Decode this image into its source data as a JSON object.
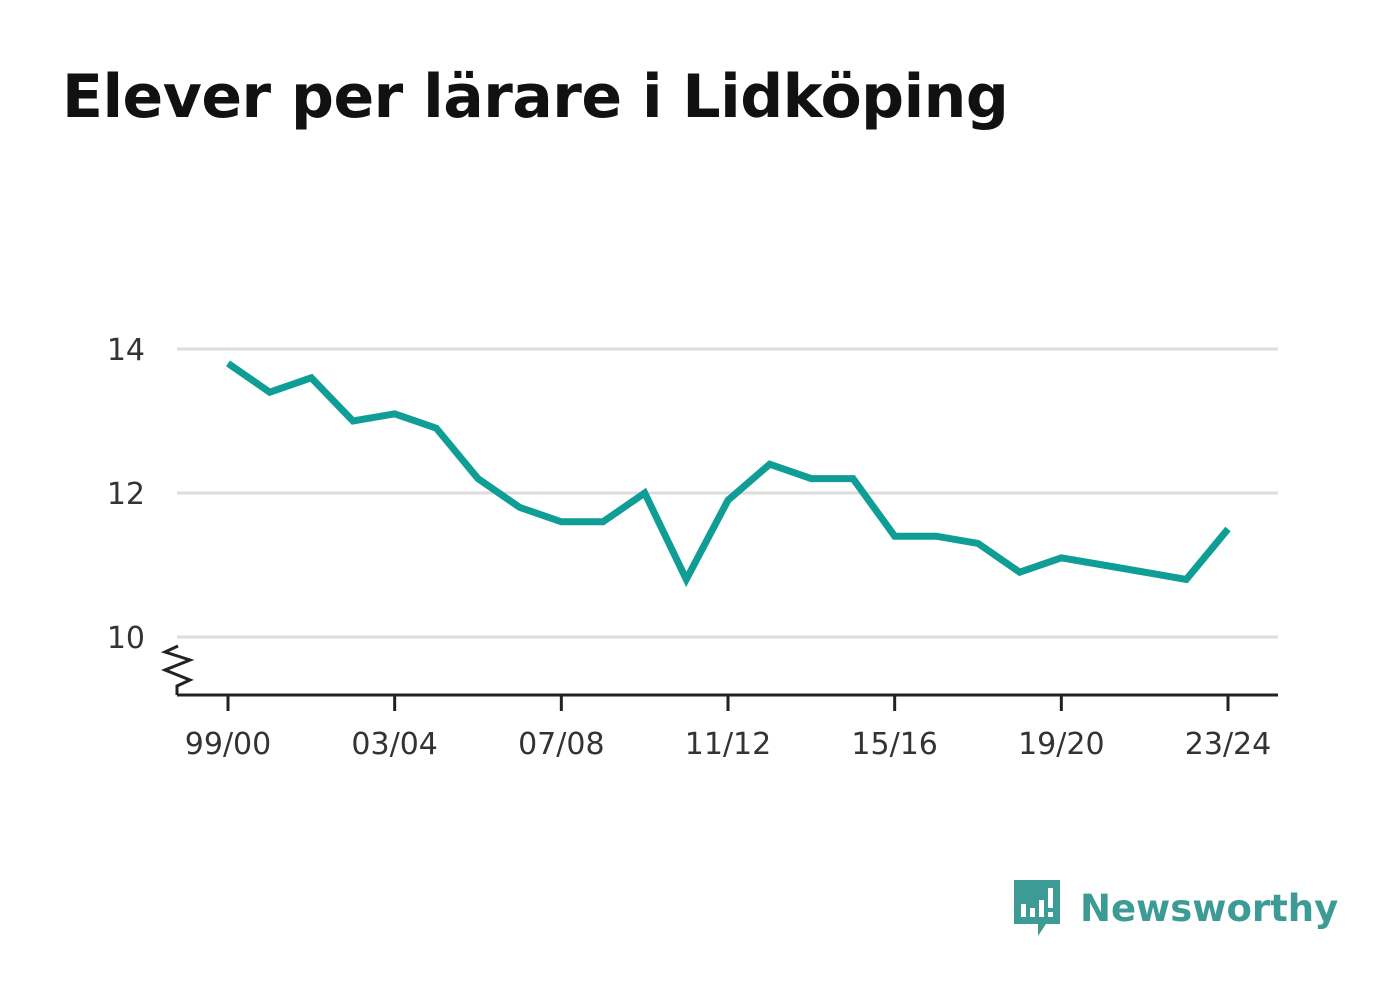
{
  "title": "Elever per lärare i Lidköping",
  "brand": {
    "name": "Newsworthy",
    "icon": "newsworthy-logo-icon",
    "color": "#3d9b95"
  },
  "chart_data": {
    "type": "line",
    "title": "Elever per lärare i Lidköping",
    "xlabel": "",
    "ylabel": "",
    "x": [
      "99/00",
      "00/01",
      "01/02",
      "02/03",
      "03/04",
      "04/05",
      "05/06",
      "06/07",
      "07/08",
      "08/09",
      "09/10",
      "10/11",
      "11/12",
      "12/13",
      "13/14",
      "14/15",
      "15/16",
      "16/17",
      "17/18",
      "18/19",
      "19/20",
      "20/21",
      "21/22",
      "22/23",
      "23/24"
    ],
    "xticks": [
      "99/00",
      "03/04",
      "07/08",
      "11/12",
      "15/16",
      "19/20",
      "23/24"
    ],
    "yticks": [
      10,
      12,
      14
    ],
    "ylim": [
      9.2,
      14.2
    ],
    "y_axis_break": true,
    "grid": true,
    "line_color": "#0e9e96",
    "series": [
      {
        "values": [
          13.8,
          13.4,
          13.6,
          13.0,
          13.1,
          12.9,
          12.2,
          11.8,
          11.6,
          11.6,
          12.0,
          10.8,
          11.9,
          12.4,
          12.2,
          12.2,
          11.4,
          11.4,
          11.3,
          10.9,
          11.1,
          11.0,
          10.9,
          10.8,
          11.5
        ]
      }
    ]
  }
}
